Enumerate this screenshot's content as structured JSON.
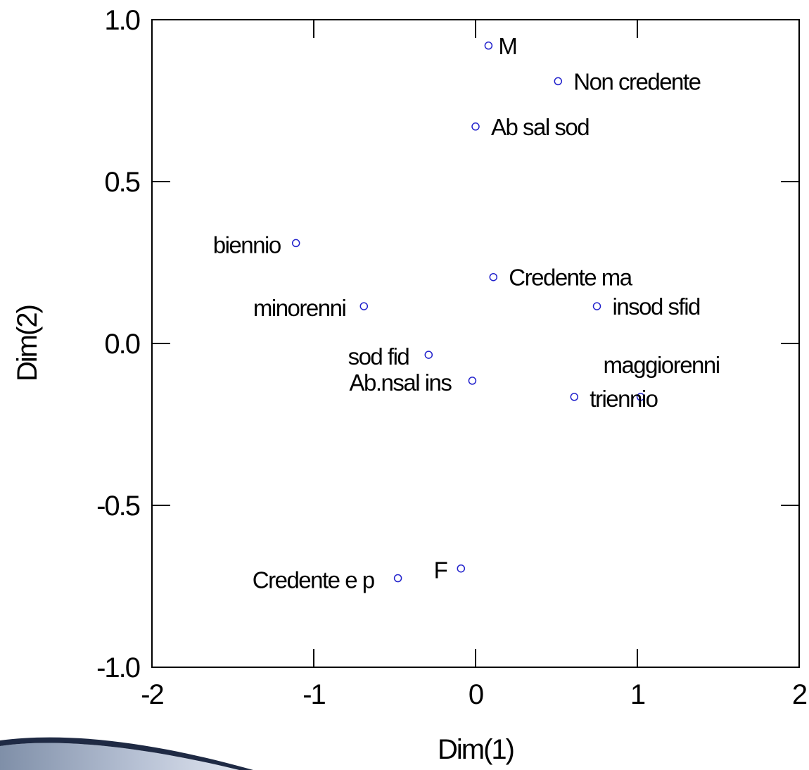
{
  "chart_data": {
    "type": "scatter",
    "xlabel": "Dim(1)",
    "ylabel": "Dim(2)",
    "xlim": [
      -2,
      2
    ],
    "ylim": [
      -1,
      1
    ],
    "x_ticks": [
      "-2",
      "-1",
      "0",
      "1",
      "2"
    ],
    "y_ticks": [
      "-1.0",
      "-0.5",
      "0.0",
      "0.5",
      "1.0"
    ],
    "grid": false,
    "marker_color": "#2222cc",
    "points": [
      {
        "label": "M",
        "x": 0.08,
        "y": 0.92
      },
      {
        "label": "Non credente",
        "x": 0.51,
        "y": 0.81
      },
      {
        "label": "Ab sal sod",
        "x": 0.0,
        "y": 0.67
      },
      {
        "label": "biennio",
        "x": -1.11,
        "y": 0.31
      },
      {
        "label": "Credente ma",
        "x": 0.11,
        "y": 0.205
      },
      {
        "label": "minorenni",
        "x": -0.69,
        "y": 0.115
      },
      {
        "label": "insod sfid",
        "x": 0.75,
        "y": 0.115
      },
      {
        "label": "sod fid",
        "x": -0.29,
        "y": -0.035
      },
      {
        "label": "Ab.nsal ins",
        "x": -0.02,
        "y": -0.115
      },
      {
        "label": "maggiorenni",
        "x": 1.02,
        "y": -0.165
      },
      {
        "label": "triennio",
        "x": 0.61,
        "y": -0.165
      },
      {
        "label": "F",
        "x": -0.09,
        "y": -0.695
      },
      {
        "label": "Credente e p",
        "x": -0.48,
        "y": -0.725
      }
    ]
  }
}
